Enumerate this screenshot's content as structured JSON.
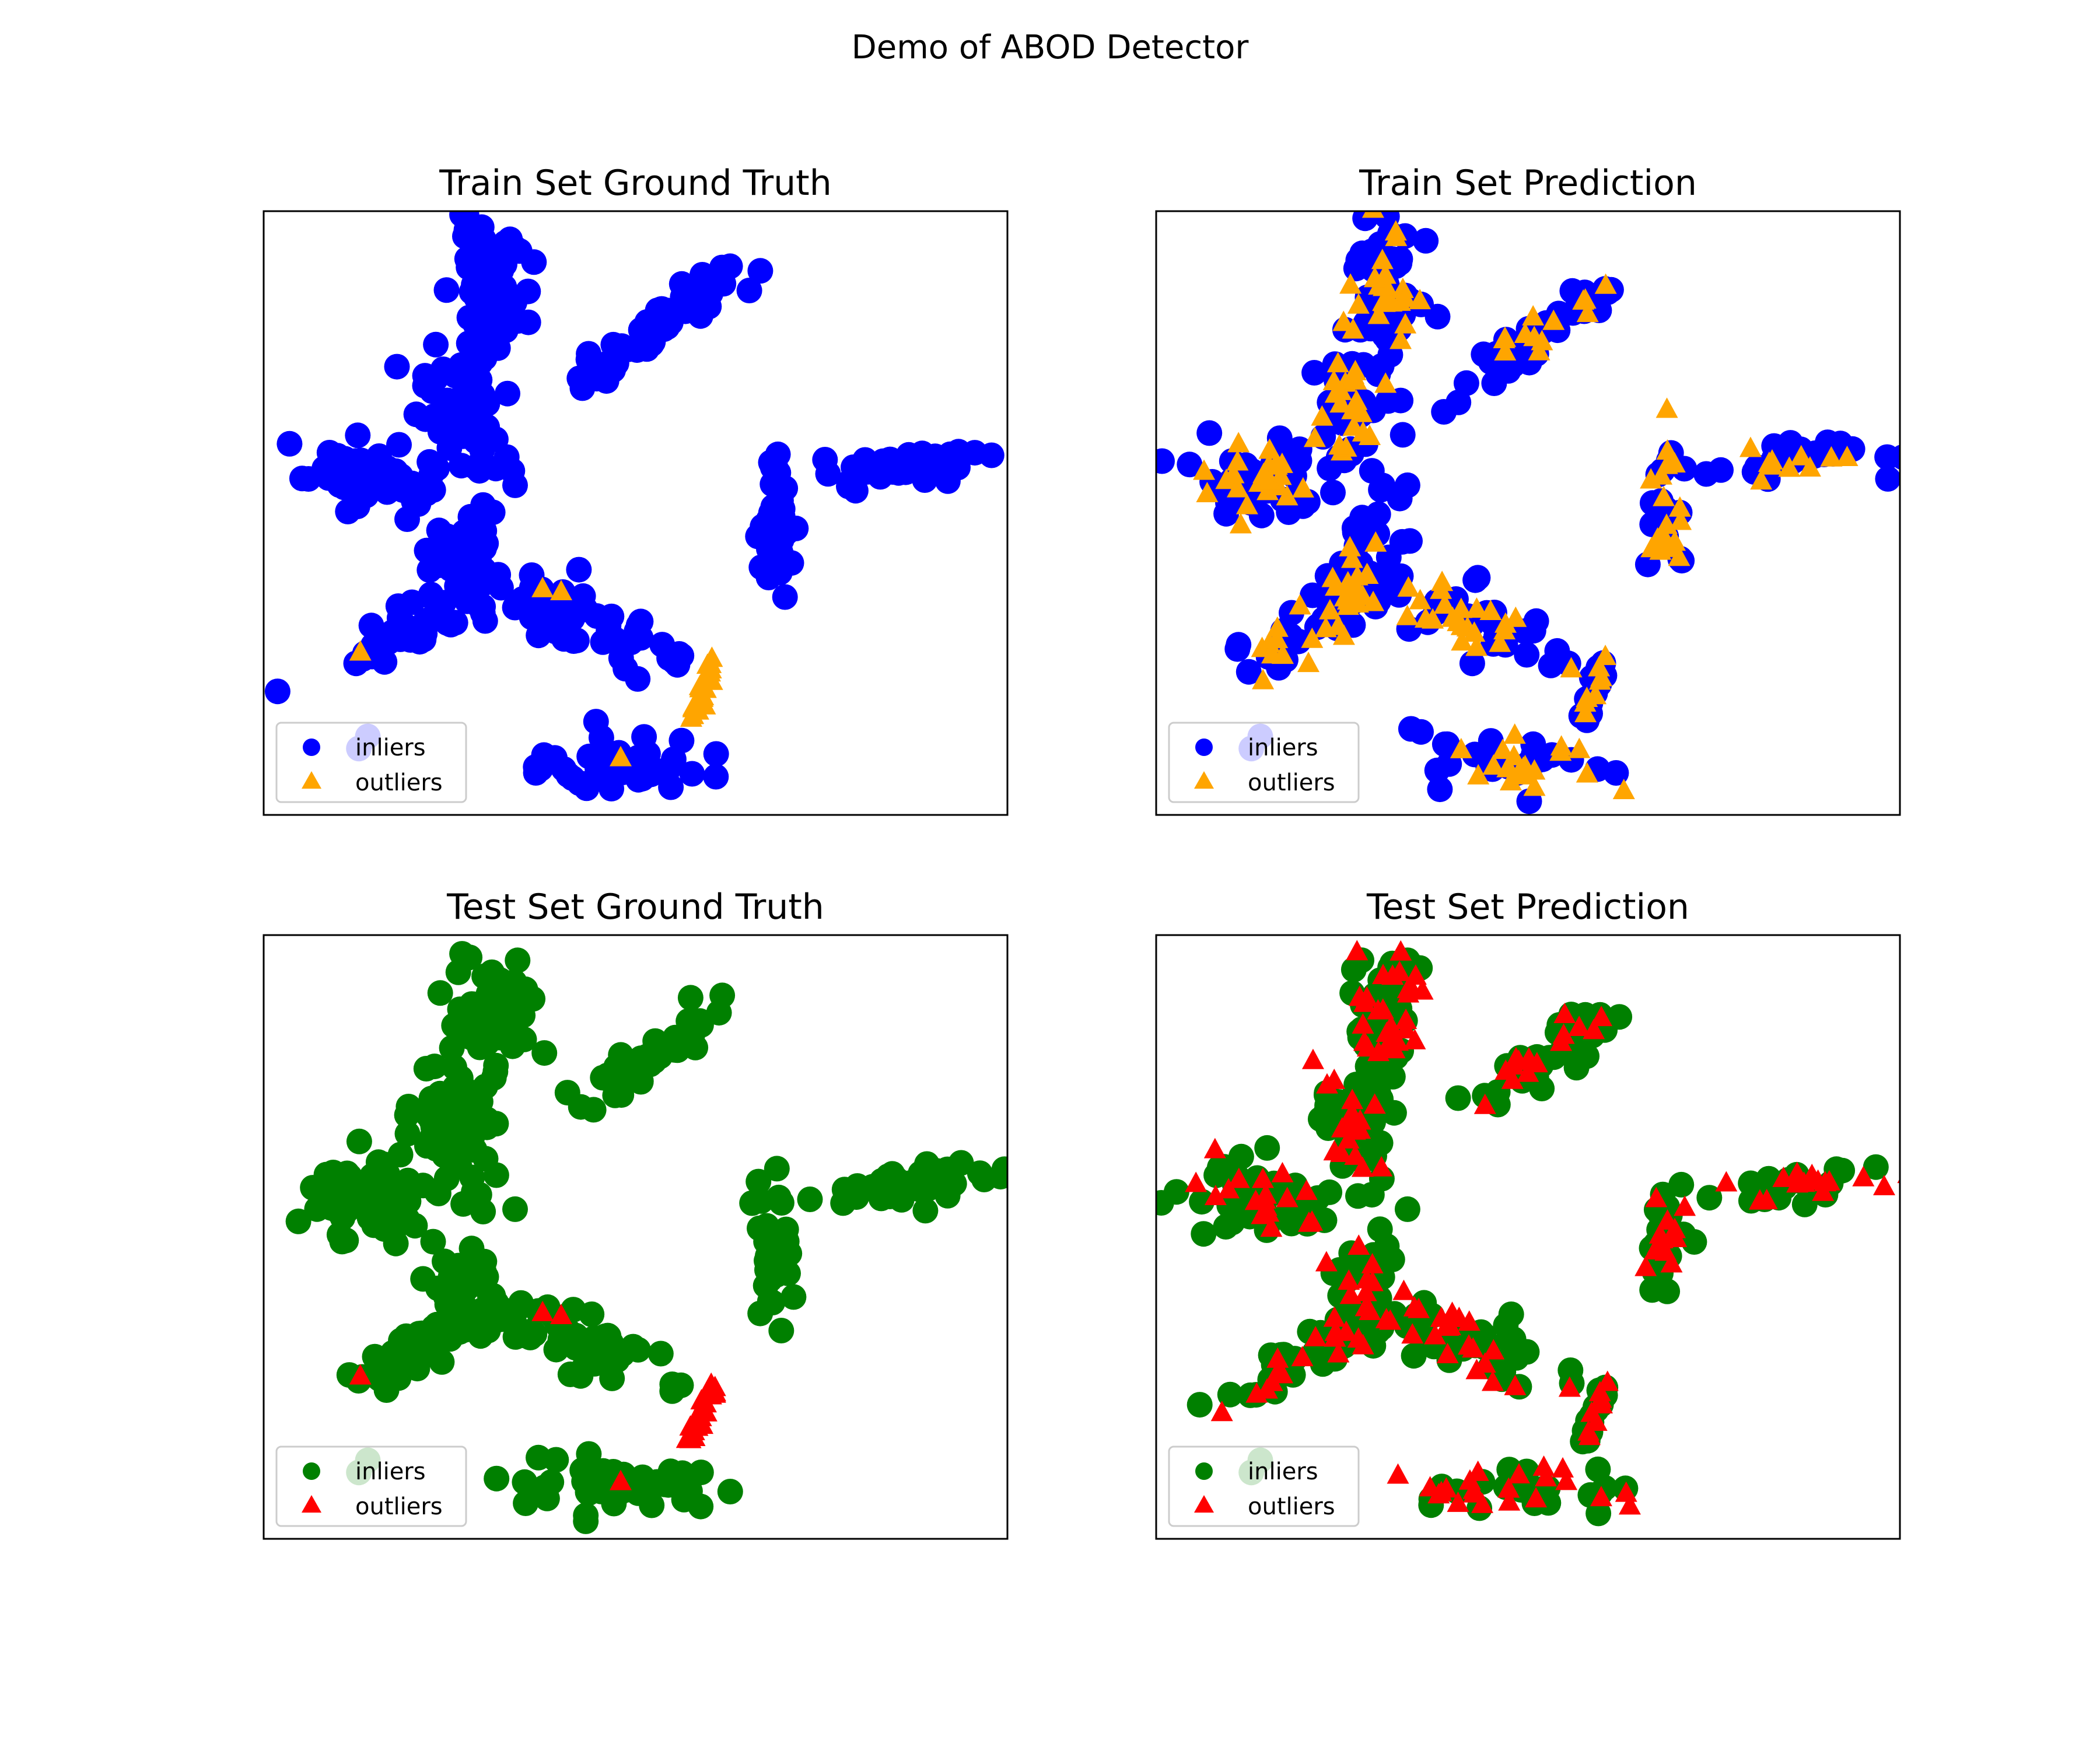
{
  "figure": {
    "title": "Demo of ABOD Detector"
  },
  "colors": {
    "train_inlier": "#0000ff",
    "train_outlier": "#ffa500",
    "test_inlier": "#008000",
    "test_outlier": "#ff0000",
    "frame": "#000000",
    "legend_border": "#cccccc"
  },
  "chart_data": [
    {
      "type": "scatter",
      "title": "Train Set Ground Truth",
      "axes_ticks": "none",
      "grid": false,
      "legend": {
        "placement": "lower-left",
        "entries": [
          "inliers",
          "outliers"
        ],
        "markers": [
          "circle",
          "triangle"
        ]
      },
      "series": [
        {
          "name": "inliers",
          "marker": "circle",
          "color": "#0000ff",
          "points": []
        },
        {
          "name": "outliers",
          "marker": "triangle",
          "color": "#ffa500",
          "points": []
        }
      ]
    },
    {
      "type": "scatter",
      "title": "Train Set Prediction",
      "axes_ticks": "none",
      "grid": false,
      "legend": {
        "placement": "lower-left",
        "entries": [
          "inliers",
          "outliers"
        ],
        "markers": [
          "circle",
          "triangle"
        ]
      },
      "series": [
        {
          "name": "inliers",
          "marker": "circle",
          "color": "#0000ff",
          "points": []
        },
        {
          "name": "outliers",
          "marker": "triangle",
          "color": "#ffa500",
          "points": []
        }
      ]
    },
    {
      "type": "scatter",
      "title": "Test Set Ground Truth",
      "axes_ticks": "none",
      "grid": false,
      "legend": {
        "placement": "lower-left",
        "entries": [
          "inliers",
          "outliers"
        ],
        "markers": [
          "circle",
          "triangle"
        ]
      },
      "series": [
        {
          "name": "inliers",
          "marker": "circle",
          "color": "#008000",
          "points": []
        },
        {
          "name": "outliers",
          "marker": "triangle",
          "color": "#ff0000",
          "points": []
        }
      ]
    },
    {
      "type": "scatter",
      "title": "Test Set Prediction",
      "axes_ticks": "none",
      "grid": false,
      "legend": {
        "placement": "lower-left",
        "entries": [
          "inliers",
          "outliers"
        ],
        "markers": [
          "circle",
          "triangle"
        ]
      },
      "series": [
        {
          "name": "inliers",
          "marker": "circle",
          "color": "#008000",
          "points": []
        },
        {
          "name": "outliers",
          "marker": "triangle",
          "color": "#ff0000",
          "points": []
        }
      ]
    }
  ]
}
